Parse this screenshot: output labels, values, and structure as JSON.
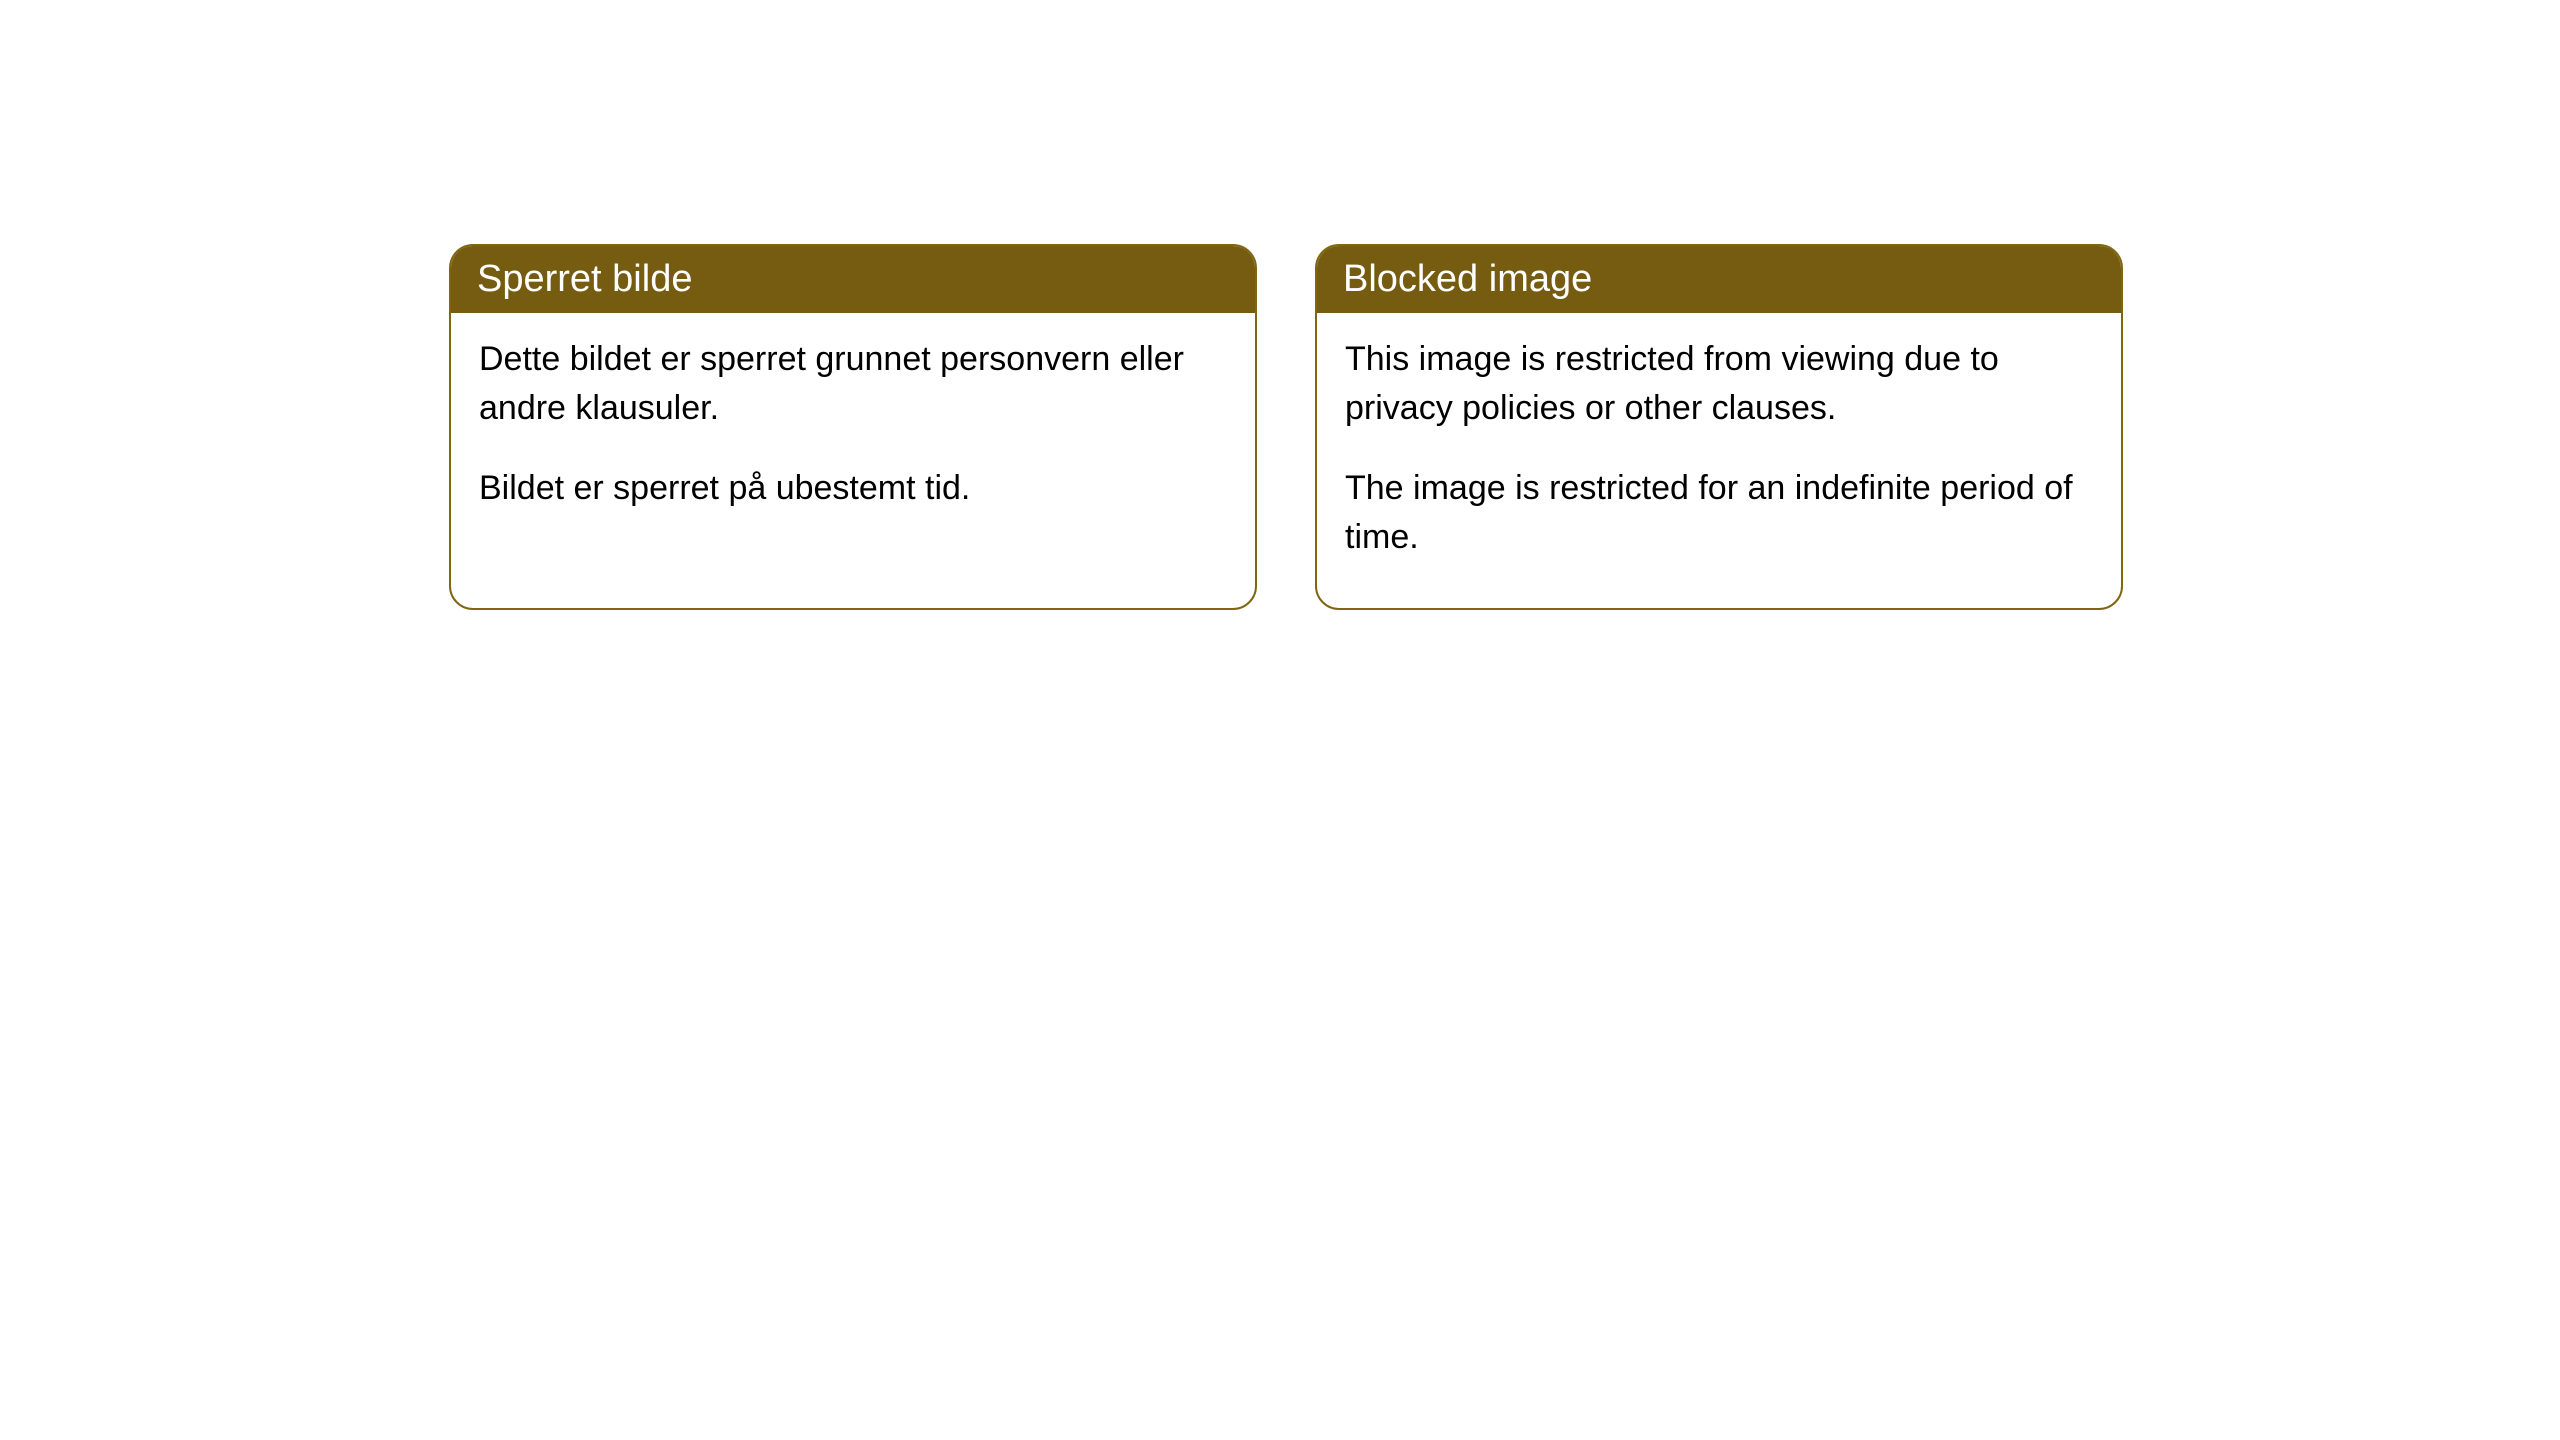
{
  "cards": [
    {
      "title": "Sperret bilde",
      "paragraph1": "Dette bildet er sperret grunnet personvern eller andre klausuler.",
      "paragraph2": "Bildet er sperret på ubestemt tid."
    },
    {
      "title": "Blocked image",
      "paragraph1": "This image is restricted from viewing due to privacy policies or other clauses.",
      "paragraph2": "The image is restricted for an indefinite period of time."
    }
  ],
  "style": {
    "header_bg": "#765c11",
    "header_text_color": "#ffffff",
    "border_color": "#806611",
    "body_bg": "#ffffff",
    "body_text_color": "#000000",
    "border_radius": 24,
    "header_fontsize": 38,
    "body_fontsize": 34
  }
}
